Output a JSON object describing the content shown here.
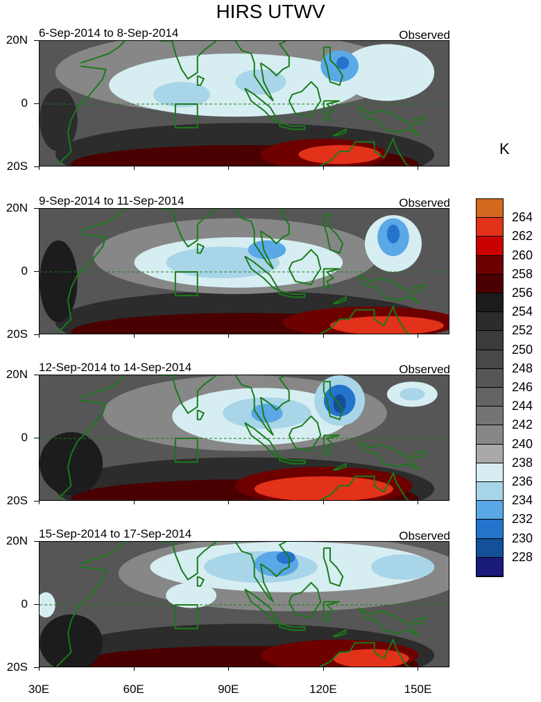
{
  "title": "HIRS UTWV",
  "chart_data": {
    "type": "heatmap",
    "variable": "HIRS UTWV",
    "units": "K",
    "x_axis": {
      "tick_labels": [
        "30E",
        "60E",
        "90E",
        "120E",
        "150E"
      ],
      "range_deg": [
        30,
        160
      ]
    },
    "y_axis": {
      "tick_labels": [
        "20N",
        "0",
        "20S"
      ],
      "range_deg": [
        -20,
        20
      ]
    },
    "colorbar": {
      "levels": [
        264,
        262,
        260,
        258,
        256,
        254,
        252,
        250,
        248,
        246,
        244,
        242,
        240,
        238,
        236,
        234,
        232,
        230,
        228
      ],
      "colors": [
        "#d2691e",
        "#e2321a",
        "#c80000",
        "#6e0000",
        "#4a0000",
        "#1c1c1c",
        "#2c2c2c",
        "#3b3b3b",
        "#484848",
        "#565656",
        "#646464",
        "#747474",
        "#878787",
        "#a9a9a9",
        "#d6eef2",
        "#a9d5e8",
        "#5aa9e6",
        "#2474cc",
        "#14509a",
        "#1a1a7a"
      ]
    },
    "panels": [
      {
        "date_range": "6-Sep-2014 to 8-Sep-2014",
        "tag": "Observed",
        "features": [
          {
            "name": "moist band",
            "lon": [
              65,
              125
            ],
            "lat": [
              -3,
              18
            ],
            "min_K": 232
          },
          {
            "name": "dry maximum south",
            "lon": [
              105,
              135
            ],
            "lat": [
              -20,
              -10
            ],
            "max_K": 262
          }
        ]
      },
      {
        "date_range": "9-Sep-2014 to 11-Sep-2014",
        "tag": "Observed",
        "features": [
          {
            "name": "moist band",
            "lon": [
              70,
              115
            ],
            "lat": [
              -5,
              12
            ],
            "min_K": 232
          },
          {
            "name": "moist cell",
            "lon": [
              137,
              147
            ],
            "lat": [
              5,
              18
            ],
            "min_K": 230
          },
          {
            "name": "dry maximum south",
            "lon": [
              115,
              160
            ],
            "lat": [
              -20,
              -12
            ],
            "max_K": 264
          }
        ]
      },
      {
        "date_range": "12-Sep-2014 to 14-Sep-2014",
        "tag": "Observed",
        "features": [
          {
            "name": "moist band",
            "lon": [
              85,
              115
            ],
            "lat": [
              0,
              15
            ],
            "min_K": 230
          },
          {
            "name": "deep moist cell",
            "lon": [
              120,
              130
            ],
            "lat": [
              5,
              18
            ],
            "min_K": 228
          },
          {
            "name": "dry maximum south",
            "lon": [
              95,
              150
            ],
            "lat": [
              -20,
              -8
            ],
            "max_K": 262
          }
        ]
      },
      {
        "date_range": "15-Sep-2014 to 17-Sep-2014",
        "tag": "Observed",
        "features": [
          {
            "name": "moist band",
            "lon": [
              65,
              160
            ],
            "lat": [
              3,
              20
            ],
            "min_K": 230
          },
          {
            "name": "dry maximum south",
            "lon": [
              105,
              155
            ],
            "lat": [
              -20,
              -10
            ],
            "max_K": 262
          }
        ]
      }
    ]
  }
}
